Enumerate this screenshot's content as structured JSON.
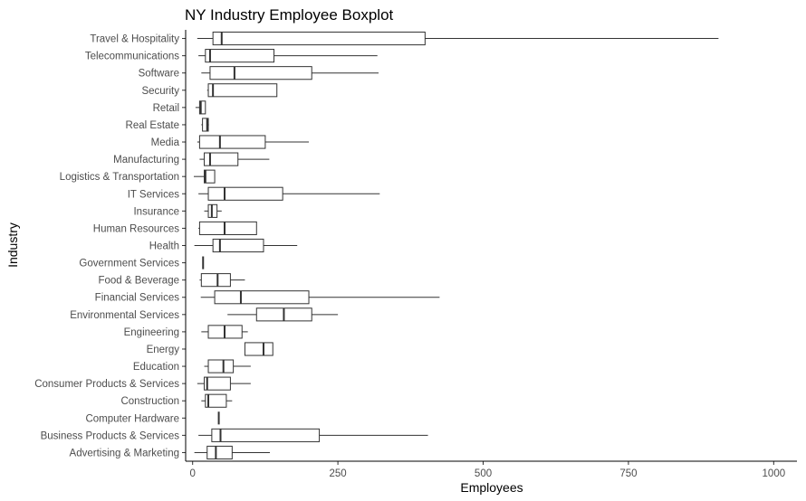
{
  "chart_data": {
    "type": "boxplot",
    "orientation": "horizontal",
    "title": "NY Industry Employee Boxplot",
    "xlabel": "Employees",
    "ylabel": "Industry",
    "xlim": [
      -12,
      1040
    ],
    "xticks": [
      0,
      250,
      500,
      750,
      1000
    ],
    "grid": false,
    "categories": [
      "Travel & Hospitality",
      "Telecommunications",
      "Software",
      "Security",
      "Retail",
      "Real Estate",
      "Media",
      "Manufacturing",
      "Logistics & Transportation",
      "IT Services",
      "Insurance",
      "Human Resources",
      "Health",
      "Government Services",
      "Food & Beverage",
      "Financial Services",
      "Environmental Services",
      "Engineering",
      "Energy",
      "Education",
      "Consumer Products & Services",
      "Construction",
      "Computer Hardware",
      "Business Products & Services",
      "Advertising & Marketing"
    ],
    "boxes": [
      {
        "min": 8,
        "q1": 35,
        "median": 50,
        "q3": 400,
        "max": 905
      },
      {
        "min": 10,
        "q1": 22,
        "median": 30,
        "q3": 140,
        "max": 318
      },
      {
        "min": 15,
        "q1": 30,
        "median": 72,
        "q3": 205,
        "max": 320
      },
      {
        "min": 25,
        "q1": 27,
        "median": 35,
        "q3": 145,
        "max": 145
      },
      {
        "min": 5,
        "q1": 12,
        "median": 14,
        "q3": 22,
        "max": 22
      },
      {
        "min": 15,
        "q1": 17,
        "median": 25,
        "q3": 27,
        "max": 28
      },
      {
        "min": 8,
        "q1": 12,
        "median": 47,
        "q3": 125,
        "max": 200
      },
      {
        "min": 12,
        "q1": 20,
        "median": 30,
        "q3": 78,
        "max": 132
      },
      {
        "min": 2,
        "q1": 20,
        "median": 22,
        "q3": 38,
        "max": 38
      },
      {
        "min": 10,
        "q1": 27,
        "median": 55,
        "q3": 155,
        "max": 322
      },
      {
        "min": 20,
        "q1": 27,
        "median": 33,
        "q3": 42,
        "max": 50
      },
      {
        "min": 10,
        "q1": 12,
        "median": 55,
        "q3": 110,
        "max": 110
      },
      {
        "min": 3,
        "q1": 35,
        "median": 47,
        "q3": 122,
        "max": 180
      },
      {
        "min": 18,
        "q1": 18,
        "median": 18,
        "q3": 18,
        "max": 18
      },
      {
        "min": 12,
        "q1": 15,
        "median": 43,
        "q3": 65,
        "max": 90
      },
      {
        "min": 14,
        "q1": 38,
        "median": 83,
        "q3": 200,
        "max": 425
      },
      {
        "min": 60,
        "q1": 110,
        "median": 157,
        "q3": 205,
        "max": 250
      },
      {
        "min": 15,
        "q1": 27,
        "median": 55,
        "q3": 85,
        "max": 95
      },
      {
        "min": 90,
        "q1": 90,
        "median": 122,
        "q3": 138,
        "max": 138
      },
      {
        "min": 20,
        "q1": 27,
        "median": 53,
        "q3": 70,
        "max": 100
      },
      {
        "min": 8,
        "q1": 20,
        "median": 25,
        "q3": 65,
        "max": 100
      },
      {
        "min": 15,
        "q1": 22,
        "median": 27,
        "q3": 58,
        "max": 68
      },
      {
        "min": 45,
        "q1": 45,
        "median": 45,
        "q3": 45,
        "max": 45
      },
      {
        "min": 10,
        "q1": 33,
        "median": 48,
        "q3": 218,
        "max": 405
      },
      {
        "min": 3,
        "q1": 25,
        "median": 40,
        "q3": 68,
        "max": 133
      }
    ]
  }
}
